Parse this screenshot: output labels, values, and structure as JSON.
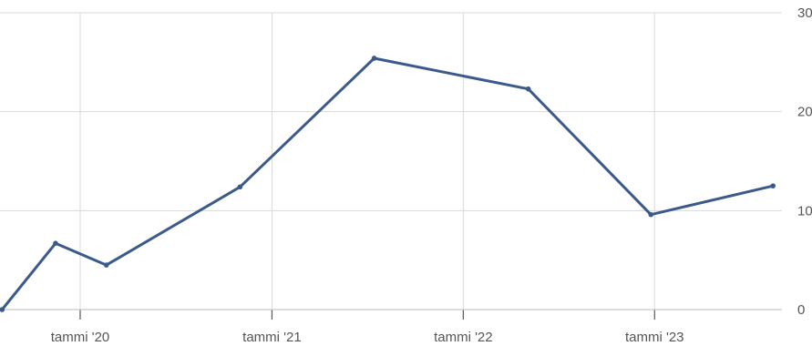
{
  "chart_data": {
    "type": "line",
    "title": "",
    "xlabel": "",
    "ylabel": "",
    "x_tick_labels": [
      "tammi '20",
      "tammi '21",
      "tammi '22",
      "tammi '23"
    ],
    "x_tick_dates": [
      "2020-01-01",
      "2021-01-01",
      "2022-01-01",
      "2023-01-01"
    ],
    "y_tick_labels": [
      "0",
      "10",
      "20",
      "30"
    ],
    "y_ticks": [
      0,
      10,
      20,
      30
    ],
    "ylim": [
      0,
      30
    ],
    "xlim": [
      "2019-08-01",
      "2023-09-01"
    ],
    "grid": true,
    "y_axis_position": "right",
    "series": [
      {
        "color": "#3b5a8c",
        "points": [
          {
            "x": "2019-08-05",
            "y": 0
          },
          {
            "x": "2019-11-15",
            "y": 6.7
          },
          {
            "x": "2020-02-20",
            "y": 4.5
          },
          {
            "x": "2020-11-01",
            "y": 12.4
          },
          {
            "x": "2021-07-15",
            "y": 25.4
          },
          {
            "x": "2022-05-05",
            "y": 22.3
          },
          {
            "x": "2022-12-25",
            "y": 9.6
          },
          {
            "x": "2023-08-15",
            "y": 12.5
          }
        ]
      }
    ]
  }
}
